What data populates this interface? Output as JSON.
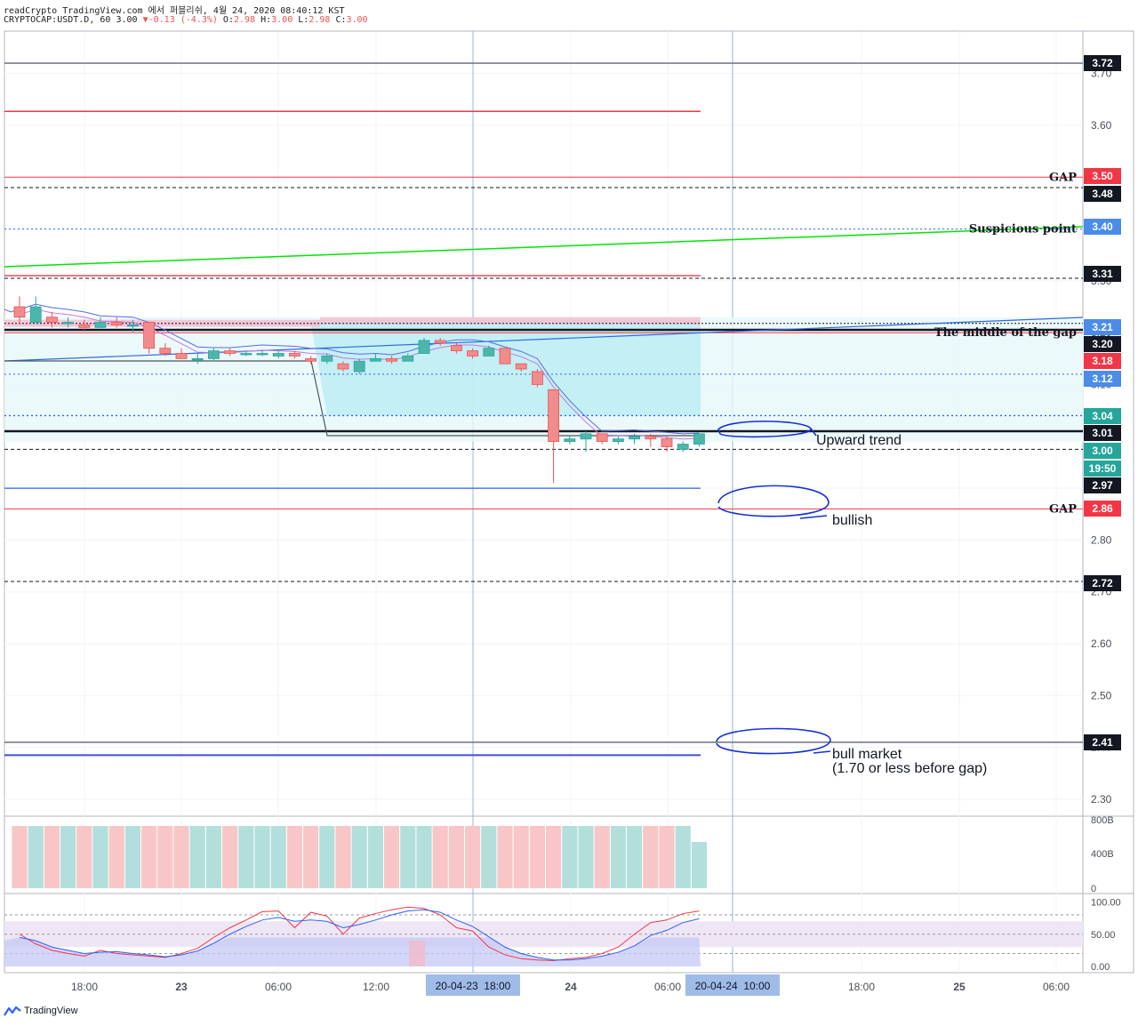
{
  "header": {
    "line1": "readCrypto TradingView.com 에서 퍼블리쉬, 4월 24, 2020 08:40:12 KST",
    "symbol": "CRYPTOCAP:USDT.D, 60",
    "last": "3.00",
    "change": "-0.13 (-4.3%)",
    "ohlc": {
      "o_label": "O:",
      "o": "2.98",
      "h_label": "H:",
      "h": "3.00",
      "l_label": "L:",
      "l": "2.98",
      "c_label": "C:",
      "c": "3.00"
    }
  },
  "footer": {
    "brand": "TradingView"
  },
  "colors": {
    "up": "#26a69a",
    "down": "#ef5350",
    "upFill": "#4db6ac",
    "downFill": "#f28b8b",
    "red": "#f23645",
    "blue": "#2962ff",
    "green": "#00e600",
    "black": "#131722",
    "cloud": "#b2ebf2",
    "pinkBand": "#f8bbd0"
  },
  "chart_data": {
    "type": "candlestick",
    "symbol": "CRYPTOCAP:USDT.D",
    "timeframe": "60",
    "ylim": [
      2.24,
      3.78
    ],
    "y_ticks": [
      "3.70",
      "3.60",
      "3.50",
      "3.40",
      "3.30",
      "3.20",
      "3.10",
      "3.00",
      "2.90",
      "2.80",
      "2.70",
      "2.60",
      "2.50",
      "2.40",
      "2.30"
    ],
    "x_ticks": [
      "18:00",
      "23",
      "06:00",
      "12:00",
      "18:00",
      "24",
      "06:00",
      "10:00",
      "18:00",
      "25",
      "06:00"
    ],
    "x_highlight": [
      "20-04-23  18:00",
      "20-04-24  10:00"
    ],
    "candles": [
      [
        3.25,
        3.27,
        3.22,
        3.23
      ],
      [
        3.22,
        3.27,
        3.22,
        3.25
      ],
      [
        3.23,
        3.24,
        3.21,
        3.22
      ],
      [
        3.22,
        3.23,
        3.21,
        3.22
      ],
      [
        3.215,
        3.225,
        3.205,
        3.21
      ],
      [
        3.21,
        3.23,
        3.21,
        3.22
      ],
      [
        3.22,
        3.23,
        3.21,
        3.215
      ],
      [
        3.215,
        3.225,
        3.2,
        3.215
      ],
      [
        3.22,
        3.22,
        3.16,
        3.17
      ],
      [
        3.17,
        3.18,
        3.155,
        3.16
      ],
      [
        3.16,
        3.17,
        3.15,
        3.15
      ],
      [
        3.15,
        3.16,
        3.14,
        3.15
      ],
      [
        3.15,
        3.17,
        3.145,
        3.165
      ],
      [
        3.165,
        3.17,
        3.155,
        3.16
      ],
      [
        3.16,
        3.165,
        3.155,
        3.16
      ],
      [
        3.16,
        3.165,
        3.155,
        3.16
      ],
      [
        3.155,
        3.165,
        3.15,
        3.16
      ],
      [
        3.16,
        3.165,
        3.15,
        3.155
      ],
      [
        3.15,
        3.155,
        3.14,
        3.145
      ],
      [
        3.145,
        3.16,
        3.14,
        3.155
      ],
      [
        3.14,
        3.145,
        3.125,
        3.13
      ],
      [
        3.125,
        3.15,
        3.12,
        3.145
      ],
      [
        3.145,
        3.16,
        3.145,
        3.15
      ],
      [
        3.15,
        3.155,
        3.14,
        3.145
      ],
      [
        3.145,
        3.16,
        3.145,
        3.155
      ],
      [
        3.16,
        3.19,
        3.16,
        3.185
      ],
      [
        3.185,
        3.19,
        3.175,
        3.18
      ],
      [
        3.175,
        3.18,
        3.16,
        3.165
      ],
      [
        3.165,
        3.17,
        3.15,
        3.155
      ],
      [
        3.155,
        3.175,
        3.155,
        3.17
      ],
      [
        3.17,
        3.17,
        3.14,
        3.14
      ],
      [
        3.14,
        3.14,
        3.125,
        3.13
      ],
      [
        3.125,
        3.13,
        3.095,
        3.1
      ],
      [
        3.09,
        3.09,
        2.91,
        2.99
      ],
      [
        2.99,
        3.0,
        2.985,
        2.995
      ],
      [
        2.995,
        3.01,
        2.97,
        3.005
      ],
      [
        3.005,
        3.005,
        2.985,
        2.99
      ],
      [
        2.99,
        3.0,
        2.985,
        2.995
      ],
      [
        2.995,
        3.005,
        2.985,
        3.0
      ],
      [
        3.0,
        3.005,
        2.98,
        2.995
      ],
      [
        2.995,
        3.0,
        2.97,
        2.98
      ],
      [
        2.975,
        2.99,
        2.97,
        2.985
      ],
      [
        2.985,
        3.005,
        2.98,
        3.005
      ]
    ],
    "volume_axis": [
      "800B",
      "400B",
      "0"
    ],
    "rsi_axis": [
      "100.00",
      "50.00",
      "0.00"
    ],
    "price_labels": [
      {
        "value": "3.72",
        "style": "black"
      },
      {
        "value": "3.50",
        "style": "red"
      },
      {
        "value": "3.48",
        "style": "black"
      },
      {
        "value": "3.40",
        "style": "blue"
      },
      {
        "value": "3.31",
        "style": "black"
      },
      {
        "value": "3.21",
        "style": "blue"
      },
      {
        "value": "3.20",
        "style": "black"
      },
      {
        "value": "3.18",
        "style": "red"
      },
      {
        "value": "3.12",
        "style": "blue"
      },
      {
        "value": "3.04",
        "style": "teal"
      },
      {
        "value": "3.01",
        "style": "black"
      },
      {
        "value": "3.00",
        "style": "teal"
      },
      {
        "value": "19:50",
        "style": "teal"
      },
      {
        "value": "2.97",
        "style": "black"
      },
      {
        "value": "2.86",
        "style": "red"
      },
      {
        "value": "2.72",
        "style": "black"
      },
      {
        "value": "2.41",
        "style": "black"
      }
    ],
    "annotations": [
      {
        "text": "GAP",
        "price": 3.5
      },
      {
        "text": "Suspicious point",
        "price": 3.4
      },
      {
        "text": "The middle of the gap",
        "price": 3.2
      },
      {
        "text": "GAP",
        "price": 2.86
      },
      {
        "text": "Upward trend",
        "price": 3.005
      },
      {
        "text": "bullish",
        "price": 2.84
      },
      {
        "text": "bull market",
        "price": 2.39
      },
      {
        "text": "(1.70 or less before gap)",
        "price": 2.36
      }
    ]
  }
}
